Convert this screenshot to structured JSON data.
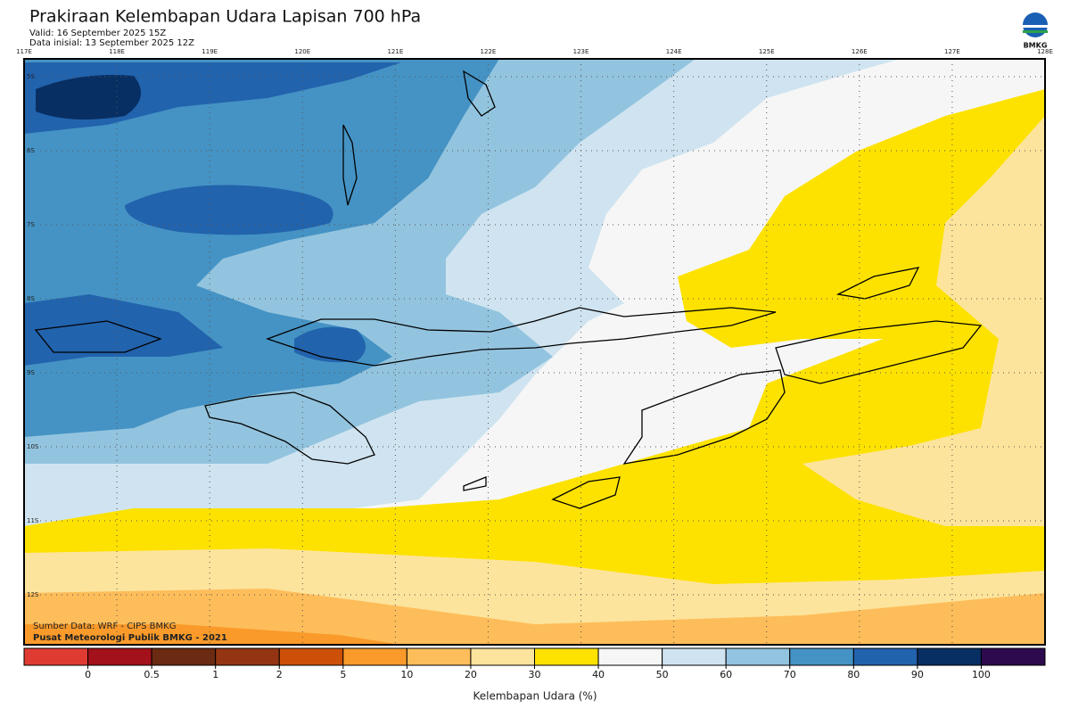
{
  "header": {
    "title": "Prakiraan Kelembapan Udara Lapisan 700 hPa",
    "valid": "Valid: 16 September 2025 15Z",
    "initial": "Data inisial: 13 September 2025 12Z",
    "logo": "BMKG"
  },
  "map": {
    "lon_labels": [
      "117E",
      "118E",
      "119E",
      "120E",
      "121E",
      "122E",
      "123E",
      "124E",
      "125E",
      "126E",
      "127E",
      "128E"
    ],
    "lat_labels": [
      "5S",
      "6S",
      "7S",
      "8S",
      "9S",
      "10S",
      "11S",
      "12S"
    ],
    "source": "Sumber Data: WRF - CIPS BMKG",
    "credit": "Pusat Meteorologi Publik BMKG - 2021"
  },
  "colorbar": {
    "ticks": [
      0,
      0.5,
      1,
      2,
      5,
      10,
      20,
      30,
      40,
      50,
      60,
      70,
      80,
      90,
      100
    ],
    "colors": [
      "#e03b32",
      "#a3111a",
      "#6b2a12",
      "#933512",
      "#cc5008",
      "#f99a2a",
      "#fdbd5a",
      "#fde49c",
      "#fde200",
      "#f6f6f6",
      "#cfe4f0",
      "#93c4df",
      "#4593c4",
      "#2263ad",
      "#082f63",
      "#2d0a4d"
    ],
    "label": "Kelembapan Udara (%)"
  }
}
